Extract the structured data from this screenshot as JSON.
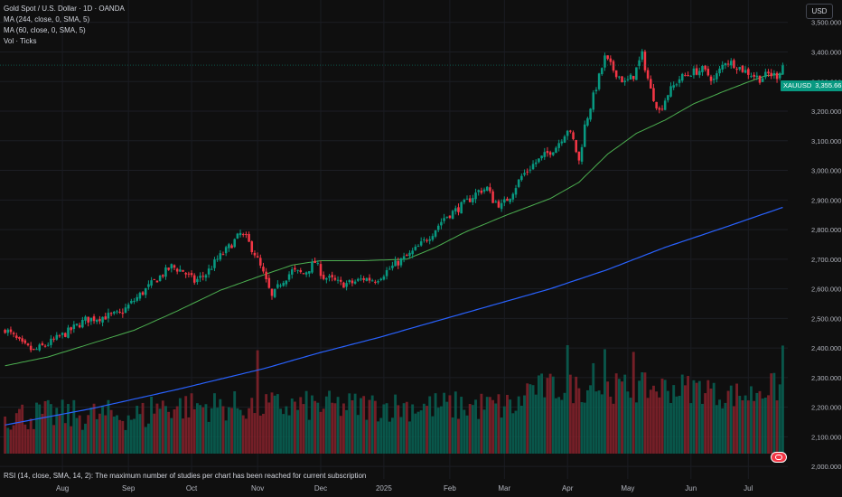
{
  "legend": {
    "title": "Gold Spot / U.S. Dollar · 1D · OANDA",
    "ma1": "MA (244, close, 0, SMA, 5)",
    "ma2": "MA (60, close, 0, SMA, 5)",
    "vol": "Vol · Ticks"
  },
  "currency": "USD",
  "price_tag": {
    "symbol": "XAUUSD",
    "value": "3,355.665"
  },
  "rsi_note": "RSI (14, close, SMA, 14, 2): The maximum number of studies per chart has been reached for current subscription",
  "colors": {
    "up": "#089981",
    "down": "#f23645",
    "ma60": "#4caf50",
    "ma244": "#2962ff",
    "bg": "#0f0f0f"
  },
  "chart_data": {
    "type": "candlestick",
    "y_axis": {
      "ticks": [
        "3,500.000",
        "3,400.000",
        "3,300.000",
        "3,200.000",
        "3,100.000",
        "3,000.000",
        "2,900.000",
        "2,800.000",
        "2,700.000",
        "2,600.000",
        "2,500.000",
        "2,400.000",
        "2,300.000",
        "2,200.000",
        "2,100.000",
        "2,000.000"
      ],
      "tick_values": [
        3500,
        3400,
        3300,
        3200,
        3100,
        3000,
        2900,
        2800,
        2700,
        2600,
        2500,
        2400,
        2300,
        2200,
        2100,
        2000
      ],
      "ylim": [
        1970,
        3545
      ]
    },
    "x_axis": {
      "labels": [
        "Aug",
        "Sep",
        "Oct",
        "Nov",
        "Dec",
        "2025",
        "Feb",
        "Mar",
        "Apr",
        "May",
        "Jun",
        "Jul"
      ],
      "label_index": [
        20,
        43,
        65,
        88,
        110,
        132,
        155,
        174,
        196,
        217,
        239,
        259
      ],
      "n_bars": 272
    },
    "close_anchors": [
      [
        0,
        2465
      ],
      [
        6,
        2410
      ],
      [
        10,
        2390
      ],
      [
        16,
        2420
      ],
      [
        22,
        2455
      ],
      [
        28,
        2495
      ],
      [
        34,
        2505
      ],
      [
        40,
        2515
      ],
      [
        46,
        2570
      ],
      [
        52,
        2625
      ],
      [
        58,
        2675
      ],
      [
        62,
        2660
      ],
      [
        66,
        2625
      ],
      [
        70,
        2650
      ],
      [
        74,
        2700
      ],
      [
        78,
        2740
      ],
      [
        82,
        2785
      ],
      [
        84,
        2770
      ],
      [
        87,
        2720
      ],
      [
        90,
        2650
      ],
      [
        93,
        2570
      ],
      [
        96,
        2620
      ],
      [
        100,
        2660
      ],
      [
        104,
        2650
      ],
      [
        108,
        2690
      ],
      [
        111,
        2640
      ],
      [
        114,
        2630
      ],
      [
        117,
        2615
      ],
      [
        121,
        2620
      ],
      [
        125,
        2635
      ],
      [
        129,
        2630
      ],
      [
        133,
        2660
      ],
      [
        137,
        2690
      ],
      [
        141,
        2715
      ],
      [
        145,
        2750
      ],
      [
        149,
        2790
      ],
      [
        153,
        2840
      ],
      [
        157,
        2865
      ],
      [
        161,
        2895
      ],
      [
        165,
        2930
      ],
      [
        168,
        2940
      ],
      [
        170,
        2900
      ],
      [
        173,
        2880
      ],
      [
        176,
        2915
      ],
      [
        180,
        2980
      ],
      [
        184,
        3020
      ],
      [
        188,
        3050
      ],
      [
        192,
        3080
      ],
      [
        196,
        3140
      ],
      [
        198,
        3100
      ],
      [
        200,
        3030
      ],
      [
        202,
        3150
      ],
      [
        205,
        3250
      ],
      [
        209,
        3380
      ],
      [
        212,
        3340
      ],
      [
        216,
        3295
      ],
      [
        219,
        3320
      ],
      [
        222,
        3390
      ],
      [
        225,
        3270
      ],
      [
        228,
        3200
      ],
      [
        231,
        3260
      ],
      [
        235,
        3310
      ],
      [
        239,
        3330
      ],
      [
        243,
        3340
      ],
      [
        247,
        3305
      ],
      [
        251,
        3370
      ],
      [
        254,
        3360
      ],
      [
        257,
        3340
      ],
      [
        260,
        3325
      ],
      [
        263,
        3310
      ],
      [
        266,
        3325
      ],
      [
        269,
        3320
      ],
      [
        271,
        3355.665
      ]
    ],
    "ma60_anchors": [
      [
        0,
        2340
      ],
      [
        15,
        2370
      ],
      [
        30,
        2415
      ],
      [
        45,
        2460
      ],
      [
        60,
        2525
      ],
      [
        75,
        2595
      ],
      [
        88,
        2640
      ],
      [
        100,
        2680
      ],
      [
        110,
        2695
      ],
      [
        125,
        2695
      ],
      [
        140,
        2700
      ],
      [
        150,
        2740
      ],
      [
        160,
        2790
      ],
      [
        175,
        2850
      ],
      [
        190,
        2905
      ],
      [
        200,
        2960
      ],
      [
        210,
        3055
      ],
      [
        220,
        3125
      ],
      [
        230,
        3170
      ],
      [
        240,
        3225
      ],
      [
        250,
        3265
      ],
      [
        258,
        3295
      ],
      [
        265,
        3320
      ],
      [
        271,
        3325
      ]
    ],
    "ma244_anchors": [
      [
        0,
        2140
      ],
      [
        30,
        2195
      ],
      [
        60,
        2260
      ],
      [
        90,
        2330
      ],
      [
        110,
        2385
      ],
      [
        130,
        2435
      ],
      [
        150,
        2490
      ],
      [
        170,
        2545
      ],
      [
        190,
        2600
      ],
      [
        210,
        2665
      ],
      [
        230,
        2740
      ],
      [
        250,
        2805
      ],
      [
        271,
        2875
      ]
    ],
    "volume": {
      "ylim_ticks": [
        0,
        54000
      ],
      "bar_zone": "bottom"
    }
  }
}
